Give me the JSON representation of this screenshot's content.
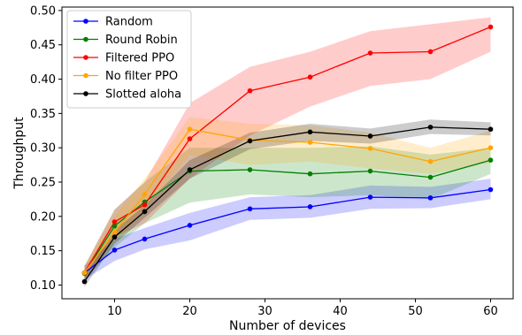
{
  "chart_data": {
    "type": "line",
    "title": "",
    "xlabel": "Number of devices",
    "ylabel": "Throughput",
    "x": [
      6,
      10,
      14,
      20,
      28,
      36,
      44,
      52,
      60
    ],
    "xlim": [
      3,
      63
    ],
    "ylim": [
      0.08,
      0.505
    ],
    "xticks": [
      10,
      20,
      30,
      40,
      50,
      60
    ],
    "yticks": [
      0.1,
      0.15,
      0.2,
      0.25,
      0.3,
      0.35,
      0.4,
      0.45,
      0.5
    ],
    "ytick_labels": [
      "0.10",
      "0.15",
      "0.20",
      "0.25",
      "0.30",
      "0.35",
      "0.40",
      "0.45",
      "0.50"
    ],
    "legend_position": "top-left",
    "grid": false,
    "series": [
      {
        "name": "Random",
        "color": "#0000ff",
        "values": [
          0.118,
          0.151,
          0.167,
          0.187,
          0.211,
          0.214,
          0.228,
          0.227,
          0.239
        ],
        "lower": [
          0.108,
          0.135,
          0.152,
          0.165,
          0.195,
          0.198,
          0.211,
          0.212,
          0.225
        ],
        "upper": [
          0.128,
          0.167,
          0.183,
          0.205,
          0.228,
          0.231,
          0.245,
          0.243,
          0.255
        ]
      },
      {
        "name": "Round Robin",
        "color": "#008000",
        "values": [
          0.117,
          0.186,
          0.221,
          0.266,
          0.268,
          0.262,
          0.266,
          0.257,
          0.282
        ],
        "lower": [
          0.107,
          0.155,
          0.19,
          0.22,
          0.232,
          0.228,
          0.231,
          0.225,
          0.262
        ],
        "upper": [
          0.127,
          0.21,
          0.25,
          0.3,
          0.3,
          0.3,
          0.302,
          0.29,
          0.3
        ]
      },
      {
        "name": "Filtered PPO",
        "color": "#ff0000",
        "values": [
          0.118,
          0.192,
          0.217,
          0.313,
          0.383,
          0.403,
          0.438,
          0.44,
          0.476
        ],
        "lower": [
          0.108,
          0.17,
          0.19,
          0.255,
          0.318,
          0.36,
          0.39,
          0.4,
          0.44
        ],
        "upper": [
          0.128,
          0.21,
          0.25,
          0.365,
          0.418,
          0.44,
          0.47,
          0.48,
          0.49
        ]
      },
      {
        "name": "No filter PPO",
        "color": "#ffa500",
        "values": [
          0.118,
          0.177,
          0.232,
          0.327,
          0.311,
          0.308,
          0.299,
          0.28,
          0.3
        ],
        "lower": [
          0.108,
          0.16,
          0.21,
          0.29,
          0.275,
          0.28,
          0.27,
          0.262,
          0.278
        ],
        "upper": [
          0.128,
          0.2,
          0.255,
          0.345,
          0.335,
          0.333,
          0.322,
          0.3,
          0.325
        ]
      },
      {
        "name": "Slotted aloha",
        "color": "#000000",
        "values": [
          0.105,
          0.17,
          0.207,
          0.268,
          0.31,
          0.323,
          0.317,
          0.33,
          0.327
        ],
        "lower": [
          0.097,
          0.16,
          0.198,
          0.255,
          0.298,
          0.31,
          0.306,
          0.32,
          0.318
        ],
        "upper": [
          0.113,
          0.18,
          0.216,
          0.282,
          0.322,
          0.335,
          0.328,
          0.341,
          0.337
        ]
      }
    ]
  }
}
